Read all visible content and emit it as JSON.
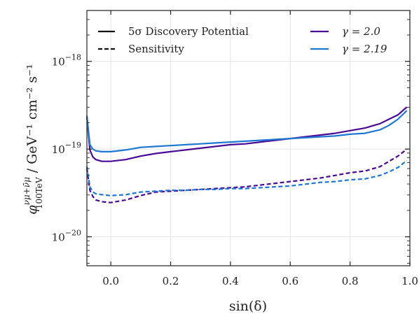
{
  "chart_data": {
    "type": "line",
    "xlabel": "sin(δ)",
    "ylabel_main": "φ",
    "ylabel_sup": "νμ+ν̄μ",
    "ylabel_sub": "100TeV",
    "ylabel_units": " / GeV⁻¹ cm⁻² s⁻¹",
    "xlim": [
      -0.08,
      1.0
    ],
    "ylim_exp": [
      -20.33,
      -17.42
    ],
    "y_scale": "log",
    "grid": true,
    "x_ticks": [
      {
        "value": 0.0,
        "label": "0.0"
      },
      {
        "value": 0.2,
        "label": "0.2"
      },
      {
        "value": 0.4,
        "label": "0.4"
      },
      {
        "value": 0.6,
        "label": "0.6"
      },
      {
        "value": 0.8,
        "label": "0.8"
      },
      {
        "value": 1.0,
        "label": "1.0"
      }
    ],
    "y_ticks": [
      {
        "exp": -20,
        "base": "10",
        "sup": "−20"
      },
      {
        "exp": -19,
        "base": "10",
        "sup": "−19"
      },
      {
        "exp": -18,
        "base": "10",
        "sup": "−18"
      }
    ],
    "legend": {
      "placement": "top",
      "style_entries": [
        {
          "label": "5σ Discovery Potential",
          "dash": "solid"
        },
        {
          "label": "Sensitivity",
          "dash": "dashed"
        }
      ],
      "color_entries": [
        {
          "label": "γ = 2.0",
          "color": "#4b0a95"
        },
        {
          "label": "γ = 2.19",
          "color": "#1f77d4"
        }
      ]
    },
    "series": [
      {
        "gamma": "2.0",
        "kind": "discovery",
        "color": "#4b0a95",
        "dash": "solid",
        "x": [
          -0.08,
          -0.07,
          -0.06,
          -0.05,
          -0.03,
          0.0,
          0.05,
          0.1,
          0.15,
          0.2,
          0.25,
          0.3,
          0.35,
          0.4,
          0.45,
          0.5,
          0.55,
          0.6,
          0.65,
          0.7,
          0.75,
          0.8,
          0.85,
          0.9,
          0.93,
          0.96,
          0.99
        ],
        "log10_y": [
          -18.63,
          -19.01,
          -19.09,
          -19.12,
          -19.14,
          -19.14,
          -19.12,
          -19.08,
          -19.05,
          -19.03,
          -19.01,
          -18.99,
          -18.97,
          -18.95,
          -18.94,
          -18.92,
          -18.9,
          -18.88,
          -18.86,
          -18.84,
          -18.82,
          -18.79,
          -18.76,
          -18.71,
          -18.66,
          -18.61,
          -18.52
        ]
      },
      {
        "gamma": "2.19",
        "kind": "discovery",
        "color": "#1f77d4",
        "dash": "solid",
        "x": [
          -0.08,
          -0.07,
          -0.06,
          -0.05,
          -0.03,
          0.0,
          0.05,
          0.1,
          0.15,
          0.2,
          0.25,
          0.3,
          0.35,
          0.4,
          0.45,
          0.5,
          0.55,
          0.6,
          0.65,
          0.7,
          0.75,
          0.8,
          0.85,
          0.9,
          0.93,
          0.96,
          0.99
        ],
        "log10_y": [
          -18.62,
          -18.95,
          -19.0,
          -19.02,
          -19.03,
          -19.03,
          -19.01,
          -18.98,
          -18.97,
          -18.96,
          -18.95,
          -18.94,
          -18.93,
          -18.92,
          -18.91,
          -18.9,
          -18.89,
          -18.88,
          -18.87,
          -18.86,
          -18.85,
          -18.83,
          -18.82,
          -18.78,
          -18.73,
          -18.66,
          -18.56
        ]
      },
      {
        "gamma": "2.0",
        "kind": "sensitivity",
        "color": "#4b0a95",
        "dash": "dashed",
        "x": [
          -0.08,
          -0.07,
          -0.06,
          -0.05,
          -0.03,
          0.0,
          0.05,
          0.1,
          0.15,
          0.2,
          0.25,
          0.3,
          0.35,
          0.4,
          0.45,
          0.5,
          0.55,
          0.6,
          0.65,
          0.7,
          0.75,
          0.8,
          0.85,
          0.9,
          0.93,
          0.96,
          0.99
        ],
        "log10_y": [
          -19.22,
          -19.47,
          -19.54,
          -19.58,
          -19.6,
          -19.61,
          -19.58,
          -19.53,
          -19.49,
          -19.48,
          -19.47,
          -19.46,
          -19.45,
          -19.44,
          -19.43,
          -19.41,
          -19.39,
          -19.37,
          -19.35,
          -19.33,
          -19.3,
          -19.27,
          -19.25,
          -19.2,
          -19.14,
          -19.08,
          -19.0
        ]
      },
      {
        "gamma": "2.19",
        "kind": "sensitivity",
        "color": "#1f77d4",
        "dash": "dashed",
        "x": [
          -0.08,
          -0.07,
          -0.06,
          -0.05,
          -0.03,
          0.0,
          0.05,
          0.1,
          0.15,
          0.2,
          0.25,
          0.3,
          0.35,
          0.4,
          0.45,
          0.5,
          0.55,
          0.6,
          0.65,
          0.7,
          0.75,
          0.8,
          0.85,
          0.9,
          0.93,
          0.96,
          0.99
        ],
        "log10_y": [
          -19.2,
          -19.43,
          -19.49,
          -19.51,
          -19.52,
          -19.53,
          -19.52,
          -19.49,
          -19.48,
          -19.47,
          -19.47,
          -19.46,
          -19.46,
          -19.45,
          -19.45,
          -19.44,
          -19.43,
          -19.42,
          -19.4,
          -19.38,
          -19.37,
          -19.35,
          -19.34,
          -19.3,
          -19.26,
          -19.21,
          -19.13
        ]
      }
    ]
  }
}
